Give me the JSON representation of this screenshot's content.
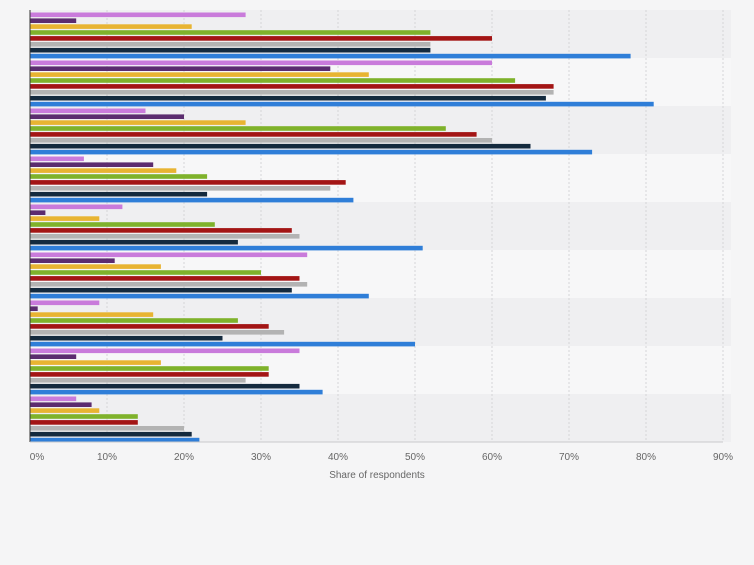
{
  "chart_data": {
    "type": "bar",
    "orientation": "horizontal",
    "xlabel": "Share of respondents",
    "ylabel": "",
    "xlim": [
      0,
      90
    ],
    "ticks": [
      "0%",
      "10%",
      "20%",
      "30%",
      "40%",
      "50%",
      "60%",
      "70%",
      "80%",
      "90%"
    ],
    "grid": true,
    "legend": "none",
    "category_count": 9,
    "series": [
      {
        "color": "#c97bdb",
        "values": [
          28,
          60,
          15,
          7,
          12,
          36,
          9,
          35,
          6
        ]
      },
      {
        "color": "#5b2c6f",
        "values": [
          6,
          39,
          20,
          16,
          2,
          11,
          1,
          6,
          8
        ]
      },
      {
        "color": "#e8b432",
        "values": [
          21,
          44,
          28,
          19,
          9,
          17,
          16,
          17,
          9
        ]
      },
      {
        "color": "#7fb22b",
        "values": [
          52,
          63,
          54,
          23,
          24,
          30,
          27,
          31,
          14
        ]
      },
      {
        "color": "#a31515",
        "values": [
          60,
          68,
          58,
          41,
          34,
          35,
          31,
          31,
          14
        ]
      },
      {
        "color": "#b3b3b3",
        "values": [
          52,
          68,
          60,
          39,
          35,
          36,
          33,
          28,
          20
        ]
      },
      {
        "color": "#142a3e",
        "values": [
          52,
          67,
          65,
          23,
          27,
          34,
          25,
          35,
          21
        ]
      },
      {
        "color": "#2f7ed8",
        "values": [
          78,
          81,
          73,
          42,
          51,
          44,
          50,
          38,
          22
        ]
      }
    ]
  }
}
